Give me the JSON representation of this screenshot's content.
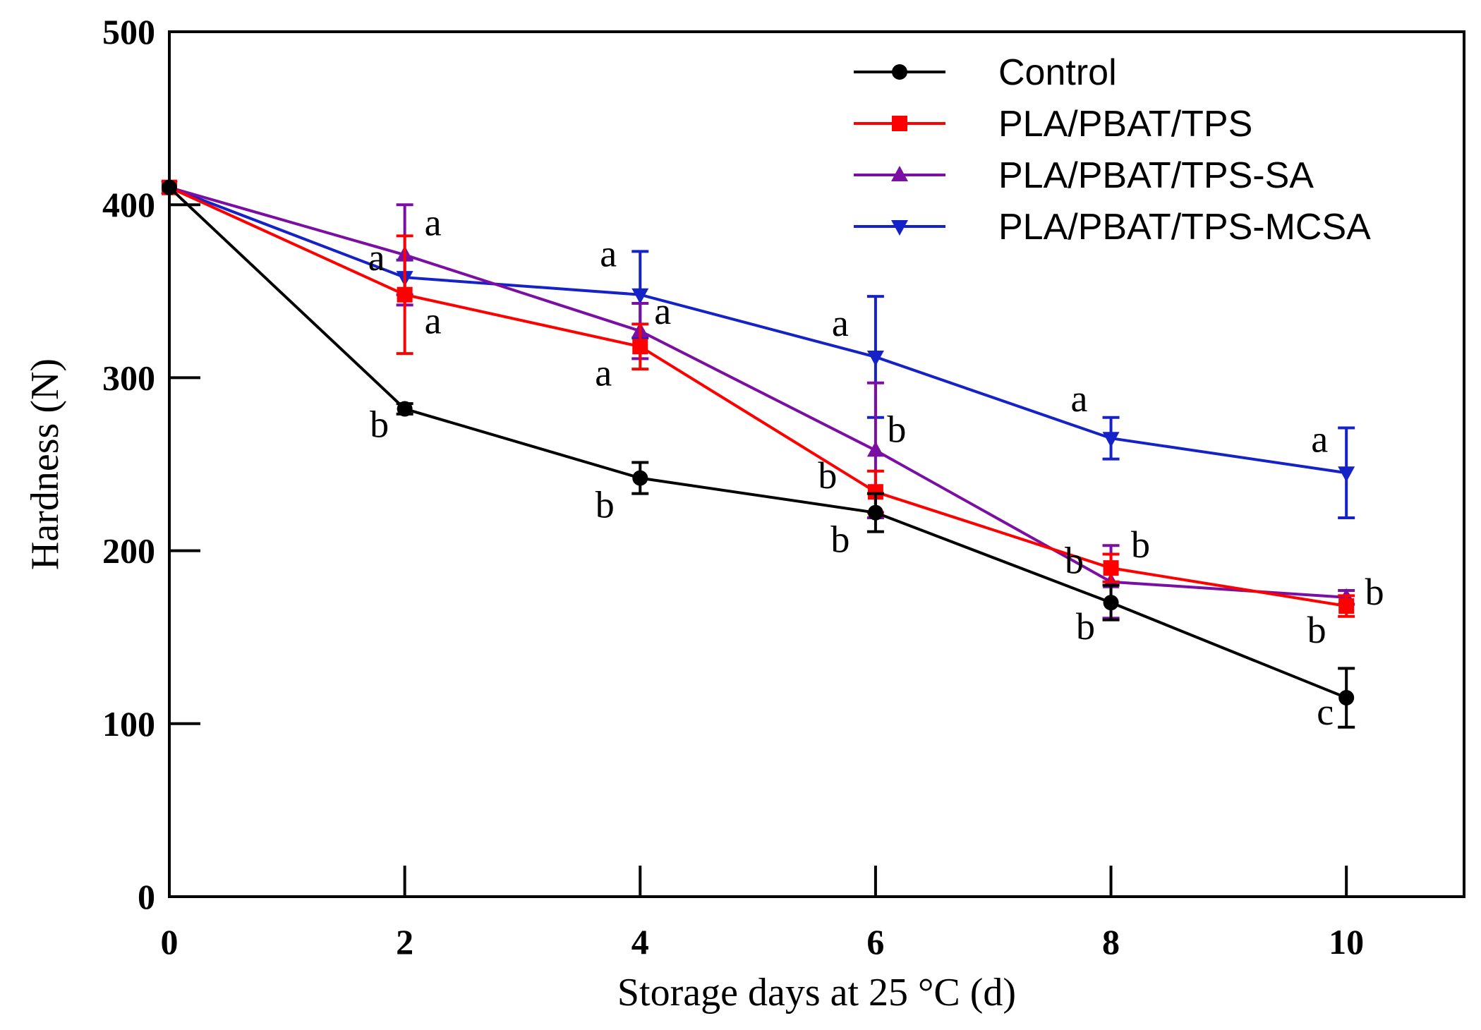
{
  "chart_data": {
    "type": "line",
    "title": "",
    "xlabel": "Storage days at 25 °C (d)",
    "ylabel": "Hardness (N)",
    "xlim": [
      0,
      11
    ],
    "ylim": [
      0,
      500
    ],
    "xticks": [
      0,
      2,
      4,
      6,
      8,
      10
    ],
    "yticks": [
      0,
      100,
      200,
      300,
      400,
      500
    ],
    "grid": false,
    "legend_position": "top-right",
    "x": [
      0,
      2,
      4,
      6,
      8,
      10
    ],
    "series": [
      {
        "name": "Control",
        "color": "#000000",
        "marker": "circle",
        "values": [
          410,
          282,
          242,
          222,
          170,
          115
        ],
        "errors": [
          3,
          3,
          9,
          11,
          10,
          17
        ],
        "letters": [
          "",
          "b",
          "b",
          "b",
          "b",
          "c"
        ]
      },
      {
        "name": "PLA/PBAT/TPS",
        "color": "#ff0000",
        "marker": "square",
        "values": [
          410,
          348,
          318,
          234,
          190,
          168
        ],
        "errors": [
          3,
          34,
          13,
          12,
          8,
          6
        ],
        "letters": [
          "",
          "a",
          "a",
          "b",
          "b",
          "b"
        ]
      },
      {
        "name": "PLA/PBAT/TPS-SA",
        "color": "#7b0ea3",
        "marker": "triangle-up",
        "values": [
          410,
          371,
          327,
          258,
          182,
          173
        ],
        "errors": [
          3,
          29,
          16,
          39,
          21,
          4
        ],
        "letters": [
          "",
          "a",
          "a",
          "b",
          "b",
          "b"
        ]
      },
      {
        "name": "PLA/PBAT/TPS-MCSA",
        "color": "#1422c8",
        "marker": "triangle-down",
        "values": [
          410,
          358,
          348,
          312,
          265,
          245
        ],
        "errors": [
          3,
          10,
          25,
          35,
          12,
          26
        ],
        "letters": [
          "",
          "a",
          "a",
          "a",
          "a",
          "a"
        ]
      }
    ]
  }
}
